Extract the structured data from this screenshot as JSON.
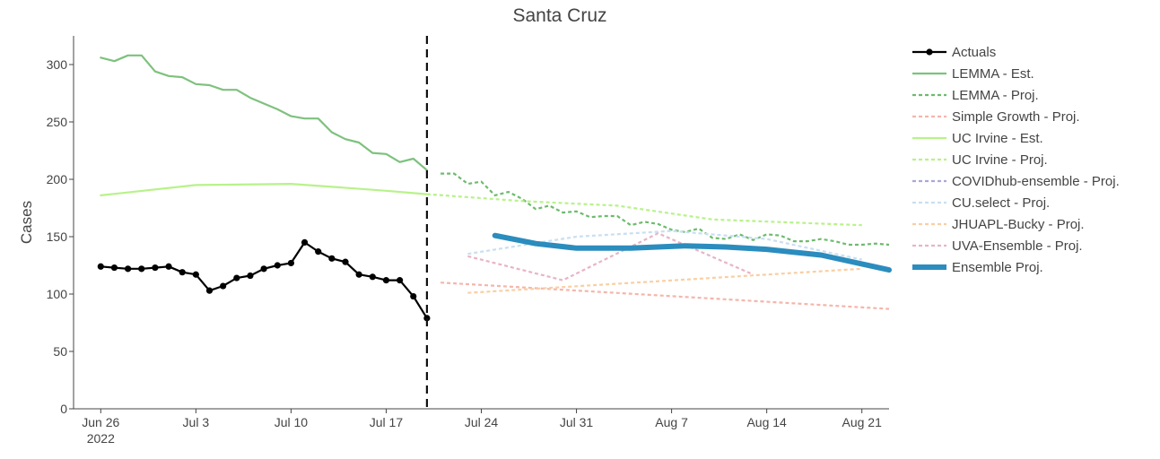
{
  "chart_data": {
    "type": "line",
    "title": "Santa Cruz",
    "ylabel": "Cases",
    "xlabel": "",
    "ylim": [
      0,
      325
    ],
    "xlim": [
      "2022-06-24",
      "2022-08-23"
    ],
    "grid": false,
    "legend_position": "right",
    "yticks": [
      0,
      50,
      100,
      150,
      200,
      250,
      300
    ],
    "xticks": [
      {
        "date": "2022-06-26",
        "label": "Jun 26",
        "sublabel": "2022"
      },
      {
        "date": "2022-07-03",
        "label": "Jul 3",
        "sublabel": ""
      },
      {
        "date": "2022-07-10",
        "label": "Jul 10",
        "sublabel": ""
      },
      {
        "date": "2022-07-17",
        "label": "Jul 17",
        "sublabel": ""
      },
      {
        "date": "2022-07-24",
        "label": "Jul 24",
        "sublabel": ""
      },
      {
        "date": "2022-07-31",
        "label": "Jul 31",
        "sublabel": ""
      },
      {
        "date": "2022-08-07",
        "label": "Aug 7",
        "sublabel": ""
      },
      {
        "date": "2022-08-14",
        "label": "Aug 14",
        "sublabel": ""
      },
      {
        "date": "2022-08-21",
        "label": "Aug 21",
        "sublabel": ""
      }
    ],
    "vline": {
      "date": "2022-07-20",
      "style": "dashed",
      "color": "#111111"
    },
    "series": [
      {
        "name": "Actuals",
        "color": "#000000",
        "style": "solid",
        "width": 2.2,
        "markers": true,
        "x": [
          "2022-06-26",
          "2022-06-27",
          "2022-06-28",
          "2022-06-29",
          "2022-06-30",
          "2022-07-01",
          "2022-07-02",
          "2022-07-03",
          "2022-07-04",
          "2022-07-05",
          "2022-07-06",
          "2022-07-07",
          "2022-07-08",
          "2022-07-09",
          "2022-07-10",
          "2022-07-11",
          "2022-07-12",
          "2022-07-13",
          "2022-07-14",
          "2022-07-15",
          "2022-07-16",
          "2022-07-17",
          "2022-07-18",
          "2022-07-19",
          "2022-07-20"
        ],
        "y": [
          124,
          123,
          122,
          122,
          123,
          124,
          119,
          117,
          103,
          107,
          114,
          116,
          122,
          125,
          127,
          145,
          137,
          131,
          128,
          117,
          115,
          112,
          112,
          98,
          79
        ]
      },
      {
        "name": "LEMMA - Est.",
        "color": "#7ec17e",
        "style": "solid",
        "width": 2.2,
        "markers": false,
        "x": [
          "2022-06-26",
          "2022-06-27",
          "2022-06-28",
          "2022-06-29",
          "2022-06-30",
          "2022-07-01",
          "2022-07-02",
          "2022-07-03",
          "2022-07-04",
          "2022-07-05",
          "2022-07-06",
          "2022-07-07",
          "2022-07-08",
          "2022-07-09",
          "2022-07-10",
          "2022-07-11",
          "2022-07-12",
          "2022-07-13",
          "2022-07-14",
          "2022-07-15",
          "2022-07-16",
          "2022-07-17",
          "2022-07-18",
          "2022-07-19",
          "2022-07-20"
        ],
        "y": [
          306,
          303,
          308,
          308,
          294,
          290,
          289,
          283,
          282,
          278,
          278,
          271,
          266,
          261,
          255,
          253,
          253,
          241,
          235,
          232,
          223,
          222,
          215,
          218,
          208
        ]
      },
      {
        "name": "LEMMA - Proj.",
        "color": "#6dbb6d",
        "style": "dotted",
        "width": 2.2,
        "markers": false,
        "x": [
          "2022-07-21",
          "2022-07-22",
          "2022-07-23",
          "2022-07-24",
          "2022-07-25",
          "2022-07-26",
          "2022-07-27",
          "2022-07-28",
          "2022-07-29",
          "2022-07-30",
          "2022-07-31",
          "2022-08-01",
          "2022-08-02",
          "2022-08-03",
          "2022-08-04",
          "2022-08-05",
          "2022-08-06",
          "2022-08-07",
          "2022-08-08",
          "2022-08-09",
          "2022-08-10",
          "2022-08-11",
          "2022-08-12",
          "2022-08-13",
          "2022-08-14",
          "2022-08-15",
          "2022-08-16",
          "2022-08-17",
          "2022-08-18",
          "2022-08-19",
          "2022-08-20",
          "2022-08-21",
          "2022-08-22",
          "2022-08-23"
        ],
        "y": [
          205,
          205,
          196,
          198,
          186,
          189,
          183,
          174,
          177,
          171,
          172,
          167,
          168,
          168,
          160,
          163,
          161,
          156,
          154,
          157,
          149,
          148,
          152,
          147,
          152,
          151,
          146,
          146,
          148,
          146,
          143,
          143,
          144,
          143
        ]
      },
      {
        "name": "Simple Growth - Proj.",
        "color": "#f4b6ab",
        "style": "dotted",
        "width": 2.2,
        "markers": false,
        "x": [
          "2022-07-21",
          "2022-08-23"
        ],
        "y": [
          110,
          87
        ]
      },
      {
        "name": "UC Irvine - Est.",
        "color": "#b8f28a",
        "style": "solid",
        "width": 2.2,
        "markers": false,
        "x": [
          "2022-06-26",
          "2022-07-03",
          "2022-07-10",
          "2022-07-17",
          "2022-07-20"
        ],
        "y": [
          186,
          195,
          196,
          190,
          187
        ]
      },
      {
        "name": "UC Irvine - Proj.",
        "color": "#b8f28a",
        "style": "dotted",
        "width": 2.2,
        "markers": false,
        "x": [
          "2022-07-20",
          "2022-07-27",
          "2022-08-03",
          "2022-08-10",
          "2022-08-21"
        ],
        "y": [
          187,
          181,
          177,
          165,
          160
        ]
      },
      {
        "name": "COVIDhub-ensemble - Proj.",
        "color": "#a9a9d8",
        "style": "dotted",
        "width": 2.2,
        "markers": false,
        "x": [],
        "y": []
      },
      {
        "name": "CU.select - Proj.",
        "color": "#c8dff2",
        "style": "dotted",
        "width": 2.2,
        "markers": false,
        "x": [
          "2022-07-23",
          "2022-07-31",
          "2022-08-07",
          "2022-08-14",
          "2022-08-21"
        ],
        "y": [
          135,
          150,
          155,
          148,
          130
        ]
      },
      {
        "name": "JHUAPL-Bucky - Proj.",
        "color": "#f9cfa3",
        "style": "dotted",
        "width": 2.2,
        "markers": false,
        "x": [
          "2022-07-23",
          "2022-08-21"
        ],
        "y": [
          101,
          122
        ]
      },
      {
        "name": "UVA-Ensemble - Proj.",
        "color": "#e8b4c4",
        "style": "dotted",
        "width": 2.2,
        "markers": false,
        "x": [
          "2022-07-23",
          "2022-07-30",
          "2022-08-06",
          "2022-08-13"
        ],
        "y": [
          133,
          112,
          153,
          117
        ]
      },
      {
        "name": "Ensemble Proj.",
        "color": "#2b8cbe",
        "style": "solid",
        "width": 6,
        "markers": false,
        "x": [
          "2022-07-25",
          "2022-07-28",
          "2022-07-31",
          "2022-08-04",
          "2022-08-08",
          "2022-08-11",
          "2022-08-14",
          "2022-08-18",
          "2022-08-23"
        ],
        "y": [
          151,
          144,
          140,
          140,
          142,
          141,
          139,
          134,
          121
        ]
      }
    ]
  }
}
